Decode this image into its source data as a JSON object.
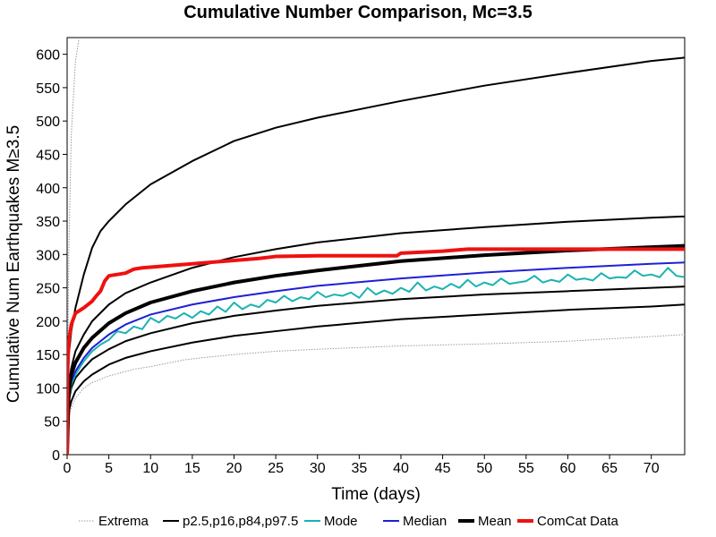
{
  "chart_data": {
    "type": "line",
    "title": "Cumulative Number Comparison, Mc=3.5",
    "xlabel": "Time (days)",
    "ylabel": "Cumulative Num Earthquakes M≥3.5",
    "xlim": [
      0,
      74
    ],
    "ylim": [
      0,
      625
    ],
    "xticks": [
      0,
      5,
      10,
      15,
      20,
      25,
      30,
      35,
      40,
      45,
      50,
      55,
      60,
      65,
      70
    ],
    "yticks": [
      0,
      50,
      100,
      150,
      200,
      250,
      300,
      350,
      400,
      450,
      500,
      550,
      600
    ],
    "grid": false,
    "legend_position": "bottom",
    "legend": [
      {
        "label": "Extrema",
        "color": "#999999",
        "style": "dotted"
      },
      {
        "label": "p2.5,p16,p84,p97.5",
        "color": "#000000",
        "style": "solid"
      },
      {
        "label": "Mode",
        "color": "#1ab2b2",
        "style": "solid"
      },
      {
        "label": "Median",
        "color": "#1f1fd6",
        "style": "solid"
      },
      {
        "label": "Mean",
        "color": "#000000",
        "style": "thick"
      },
      {
        "label": "ComCat Data",
        "color": "#ee1111",
        "style": "thick"
      }
    ],
    "series": [
      {
        "name": "Extrema",
        "style": "dotted",
        "color": "#999999",
        "x": [
          0,
          0.2,
          0.5,
          1,
          1.5,
          2
        ],
        "y": [
          0,
          300,
          480,
          590,
          630,
          660
        ]
      },
      {
        "name": "Extrema",
        "style": "dotted",
        "color": "#999999",
        "x": [
          0,
          0.2,
          0.5,
          1,
          2,
          3,
          5,
          8,
          10,
          12,
          14,
          16,
          20,
          25,
          30,
          40,
          50,
          60,
          70,
          74
        ],
        "y": [
          0,
          55,
          70,
          85,
          100,
          108,
          118,
          128,
          132,
          137,
          142,
          145,
          150,
          155,
          158,
          163,
          166,
          170,
          177,
          180
        ]
      },
      {
        "name": "p2.5",
        "color": "#000000",
        "x": [
          0,
          0.2,
          0.5,
          1,
          2,
          3,
          5,
          7,
          10,
          15,
          20,
          25,
          30,
          40,
          50,
          60,
          70,
          74
        ],
        "y": [
          0,
          65,
          80,
          95,
          110,
          120,
          135,
          145,
          155,
          168,
          178,
          185,
          192,
          203,
          210,
          217,
          222,
          225
        ]
      },
      {
        "name": "p16",
        "color": "#000000",
        "x": [
          0,
          0.2,
          0.5,
          1,
          2,
          3,
          5,
          7,
          10,
          15,
          20,
          25,
          30,
          40,
          50,
          60,
          70,
          74
        ],
        "y": [
          0,
          80,
          100,
          115,
          130,
          143,
          158,
          170,
          182,
          197,
          208,
          216,
          223,
          233,
          240,
          245,
          250,
          252
        ]
      },
      {
        "name": "p84",
        "color": "#000000",
        "x": [
          0,
          0.2,
          0.5,
          1,
          2,
          3,
          5,
          7,
          10,
          15,
          20,
          25,
          30,
          40,
          50,
          60,
          70,
          74
        ],
        "y": [
          0,
          105,
          130,
          155,
          180,
          200,
          225,
          242,
          258,
          280,
          296,
          308,
          318,
          332,
          341,
          349,
          355,
          357
        ]
      },
      {
        "name": "p97.5",
        "color": "#000000",
        "x": [
          0,
          0.2,
          0.5,
          1,
          2,
          3,
          4,
          5,
          7,
          10,
          15,
          20,
          25,
          30,
          40,
          50,
          60,
          70,
          74
        ],
        "y": [
          0,
          150,
          185,
          220,
          270,
          310,
          335,
          350,
          375,
          405,
          440,
          470,
          490,
          505,
          530,
          553,
          572,
          590,
          595
        ]
      },
      {
        "name": "Mode",
        "color": "#1ab2b2",
        "x": [
          0,
          0.2,
          0.5,
          1,
          2,
          3,
          4,
          5,
          6,
          7,
          8,
          9,
          10,
          11,
          12,
          13,
          14,
          15,
          16,
          17,
          18,
          19,
          20,
          21,
          22,
          23,
          24,
          25,
          26,
          27,
          28,
          29,
          30,
          31,
          32,
          33,
          34,
          35,
          36,
          37,
          38,
          39,
          40,
          41,
          42,
          43,
          44,
          45,
          46,
          47,
          48,
          49,
          50,
          51,
          52,
          53,
          54,
          55,
          56,
          57,
          58,
          59,
          60,
          61,
          62,
          63,
          64,
          65,
          66,
          67,
          68,
          69,
          70,
          71,
          72,
          73,
          74
        ],
        "y": [
          0,
          85,
          105,
          120,
          140,
          155,
          165,
          172,
          185,
          182,
          192,
          188,
          205,
          198,
          208,
          204,
          212,
          205,
          215,
          210,
          222,
          214,
          228,
          218,
          225,
          221,
          232,
          228,
          238,
          230,
          236,
          233,
          244,
          236,
          240,
          238,
          243,
          235,
          250,
          240,
          246,
          241,
          250,
          244,
          258,
          246,
          252,
          248,
          256,
          250,
          262,
          252,
          258,
          254,
          264,
          256,
          258,
          260,
          268,
          258,
          262,
          259,
          270,
          262,
          264,
          261,
          272,
          264,
          266,
          265,
          276,
          268,
          270,
          266,
          280,
          268,
          266
        ]
      },
      {
        "name": "Median",
        "color": "#1f1fd6",
        "x": [
          0,
          0.2,
          0.5,
          1,
          2,
          3,
          5,
          7,
          10,
          15,
          20,
          25,
          30,
          40,
          50,
          60,
          70,
          74
        ],
        "y": [
          0,
          88,
          110,
          125,
          145,
          160,
          180,
          195,
          210,
          225,
          236,
          245,
          253,
          264,
          273,
          280,
          286,
          288
        ]
      },
      {
        "name": "Mean",
        "color": "#000000",
        "style": "thick",
        "x": [
          0,
          0.2,
          0.5,
          1,
          2,
          3,
          5,
          7,
          10,
          15,
          20,
          25,
          30,
          40,
          50,
          60,
          70,
          74
        ],
        "y": [
          0,
          95,
          120,
          138,
          160,
          175,
          197,
          212,
          228,
          245,
          258,
          268,
          276,
          290,
          299,
          306,
          311,
          313
        ]
      },
      {
        "name": "ComCat Data",
        "color": "#ee1111",
        "style": "thick",
        "x": [
          0,
          0.05,
          0.2,
          0.5,
          1,
          2,
          3,
          3.5,
          4,
          4.5,
          5,
          6,
          7,
          8,
          9,
          10,
          11,
          12,
          13,
          14,
          15,
          17,
          19,
          21,
          23,
          25,
          30,
          35,
          39.5,
          40,
          45,
          48,
          50,
          55,
          60,
          65,
          70,
          74
        ],
        "y": [
          0,
          130,
          170,
          195,
          212,
          220,
          230,
          238,
          245,
          260,
          268,
          270,
          272,
          278,
          280,
          281,
          282,
          283,
          284,
          285,
          286,
          288,
          290,
          292,
          294,
          297,
          298,
          298,
          298,
          302,
          305,
          308,
          308,
          308,
          308,
          308,
          308,
          308
        ]
      }
    ]
  }
}
